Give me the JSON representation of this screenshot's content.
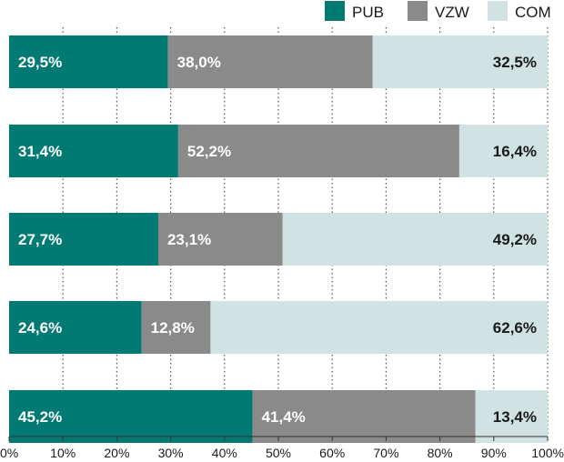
{
  "chart_data": {
    "type": "bar",
    "orientation": "horizontal",
    "stacked": true,
    "categories": [
      "",
      "",
      "",
      "",
      ""
    ],
    "series": [
      {
        "name": "PUB",
        "color": "#007a73",
        "values": [
          29.5,
          31.4,
          27.7,
          24.6,
          45.2
        ],
        "labels": [
          "29,5%",
          "31,4%",
          "27,7%",
          "24,6%",
          "45,2%"
        ]
      },
      {
        "name": "VZW",
        "color": "#8a8a8a",
        "values": [
          38.0,
          52.2,
          23.1,
          12.8,
          41.4
        ],
        "labels": [
          "38,0%",
          "52,2%",
          "23,1%",
          "12,8%",
          "41,4%"
        ]
      },
      {
        "name": "COM",
        "color": "#d0e2e1",
        "values": [
          32.5,
          16.4,
          49.2,
          62.6,
          13.4
        ],
        "labels": [
          "32,5%",
          "16,4%",
          "49,2%",
          "62,6%",
          "13,4%"
        ]
      }
    ],
    "xlim": [
      0,
      100
    ],
    "xticks": [
      "0%",
      "10%",
      "20%",
      "30%",
      "40%",
      "50%",
      "60%",
      "70%",
      "80%",
      "90%",
      "100%"
    ],
    "grid": "vertical dotted",
    "legend_position": "top-right"
  }
}
